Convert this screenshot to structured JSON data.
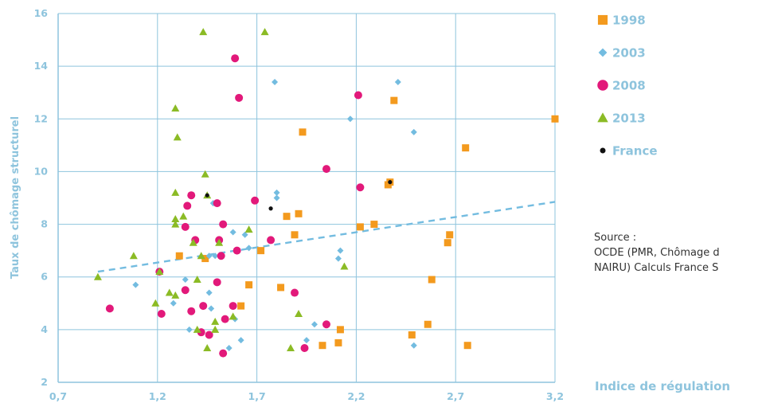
{
  "chart_data": {
    "type": "scatter",
    "xlabel": "Indice de régulation",
    "ylabel": "Taux de chômage structurel",
    "xlim": [
      0.7,
      3.2
    ],
    "ylim": [
      2,
      16
    ],
    "x_ticks": [
      "0,7",
      "1,2",
      "1,7",
      "2,2",
      "2,7",
      "3,2"
    ],
    "y_ticks": [
      "2",
      "4",
      "6",
      "8",
      "10",
      "12",
      "14",
      "16"
    ],
    "grid": true,
    "legend_position": "right",
    "colors": {
      "1998": "#f39a1e",
      "2003": "#73bce0",
      "2008": "#e2197a",
      "2013": "#8bbb25",
      "France": "#111111",
      "grid": "#8ec4dd",
      "trend": "#73bce0"
    },
    "series": [
      {
        "name": "1998",
        "marker": "square",
        "points": [
          [
            3.2,
            12
          ],
          [
            2.39,
            12.7
          ],
          [
            2.75,
            10.9
          ],
          [
            1.93,
            11.5
          ],
          [
            2.36,
            9.5
          ],
          [
            2.37,
            9.6
          ],
          [
            1.85,
            8.3
          ],
          [
            1.91,
            8.4
          ],
          [
            2.29,
            8.0
          ],
          [
            2.22,
            7.9
          ],
          [
            1.89,
            7.6
          ],
          [
            2.67,
            7.6
          ],
          [
            2.66,
            7.3
          ],
          [
            1.72,
            7.0
          ],
          [
            1.31,
            6.8
          ],
          [
            1.44,
            6.7
          ],
          [
            2.58,
            5.9
          ],
          [
            1.66,
            5.7
          ],
          [
            1.82,
            5.6
          ],
          [
            1.62,
            4.9
          ],
          [
            2.12,
            4.0
          ],
          [
            2.48,
            3.8
          ],
          [
            2.56,
            4.2
          ],
          [
            2.03,
            3.4
          ],
          [
            2.11,
            3.5
          ],
          [
            2.76,
            3.4
          ]
        ]
      },
      {
        "name": "2003",
        "marker": "diamond",
        "points": [
          [
            1.79,
            13.4
          ],
          [
            2.41,
            13.4
          ],
          [
            2.17,
            12.0
          ],
          [
            2.49,
            11.5
          ],
          [
            1.8,
            9.2
          ],
          [
            1.8,
            9.0
          ],
          [
            1.48,
            8.8
          ],
          [
            1.58,
            7.7
          ],
          [
            1.64,
            7.6
          ],
          [
            1.66,
            7.1
          ],
          [
            1.46,
            6.8
          ],
          [
            1.49,
            6.8
          ],
          [
            2.12,
            7.0
          ],
          [
            2.11,
            6.7
          ],
          [
            1.09,
            5.7
          ],
          [
            1.34,
            5.9
          ],
          [
            1.46,
            5.4
          ],
          [
            1.28,
            5.0
          ],
          [
            1.47,
            4.8
          ],
          [
            1.59,
            4.4
          ],
          [
            1.99,
            4.2
          ],
          [
            1.36,
            4.0
          ],
          [
            1.62,
            3.6
          ],
          [
            1.95,
            3.6
          ],
          [
            1.56,
            3.3
          ],
          [
            2.49,
            3.4
          ]
        ]
      },
      {
        "name": "2008",
        "marker": "circle",
        "points": [
          [
            1.59,
            14.3
          ],
          [
            1.61,
            12.8
          ],
          [
            2.21,
            12.9
          ],
          [
            2.05,
            10.1
          ],
          [
            2.22,
            9.4
          ],
          [
            1.37,
            9.1
          ],
          [
            1.35,
            8.7
          ],
          [
            1.5,
            8.8
          ],
          [
            1.69,
            8.9
          ],
          [
            1.53,
            8.0
          ],
          [
            1.34,
            7.9
          ],
          [
            1.39,
            7.4
          ],
          [
            1.51,
            7.4
          ],
          [
            1.77,
            7.4
          ],
          [
            1.6,
            7.0
          ],
          [
            1.52,
            6.8
          ],
          [
            1.21,
            6.2
          ],
          [
            1.5,
            5.8
          ],
          [
            1.34,
            5.5
          ],
          [
            1.89,
            5.4
          ],
          [
            0.96,
            4.8
          ],
          [
            1.22,
            4.6
          ],
          [
            1.37,
            4.7
          ],
          [
            1.43,
            4.9
          ],
          [
            1.58,
            4.9
          ],
          [
            1.54,
            4.4
          ],
          [
            1.42,
            3.9
          ],
          [
            1.46,
            3.8
          ],
          [
            1.53,
            3.1
          ],
          [
            1.94,
            3.3
          ],
          [
            2.05,
            4.2
          ]
        ]
      },
      {
        "name": "2013",
        "marker": "triangle",
        "points": [
          [
            1.43,
            15.3
          ],
          [
            1.74,
            15.3
          ],
          [
            1.29,
            12.4
          ],
          [
            1.3,
            11.3
          ],
          [
            1.44,
            9.9
          ],
          [
            1.29,
            9.2
          ],
          [
            1.45,
            9.1
          ],
          [
            1.29,
            8.2
          ],
          [
            1.33,
            8.3
          ],
          [
            1.29,
            8.0
          ],
          [
            1.38,
            7.3
          ],
          [
            1.66,
            7.8
          ],
          [
            1.51,
            7.3
          ],
          [
            1.42,
            6.8
          ],
          [
            1.08,
            6.8
          ],
          [
            0.9,
            6.0
          ],
          [
            2.14,
            6.4
          ],
          [
            1.21,
            6.2
          ],
          [
            1.4,
            5.9
          ],
          [
            1.19,
            5.0
          ],
          [
            1.26,
            5.4
          ],
          [
            1.29,
            5.3
          ],
          [
            1.49,
            4.3
          ],
          [
            1.91,
            4.6
          ],
          [
            1.4,
            4.0
          ],
          [
            1.49,
            4.0
          ],
          [
            1.45,
            3.3
          ],
          [
            1.58,
            4.5
          ],
          [
            1.87,
            3.3
          ]
        ]
      },
      {
        "name": "France",
        "marker": "dot",
        "points": [
          [
            1.45,
            9.1
          ],
          [
            1.77,
            8.6
          ],
          [
            2.37,
            9.6
          ]
        ]
      }
    ],
    "trendline": {
      "style": "dashed",
      "from": [
        0.9,
        6.2
      ],
      "to": [
        3.2,
        8.85
      ]
    }
  },
  "source": {
    "label": "Source :",
    "text": "OCDE (PMR, Chômage d",
    "text2": "NAIRU) Calculs France S"
  }
}
